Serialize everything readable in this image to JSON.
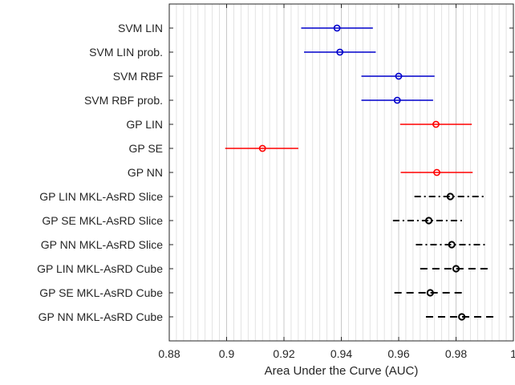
{
  "chart_data": {
    "type": "interval",
    "title": "",
    "xlabel": "Area Under the Curve (AUC)",
    "ylabel": "",
    "xlim": [
      0.88,
      1.0
    ],
    "xticks": [
      0.88,
      0.9,
      0.92,
      0.94,
      0.96,
      0.98,
      1.0
    ],
    "xtick_labels": [
      "0.88",
      "0.9",
      "0.92",
      "0.94",
      "0.96",
      "0.98",
      "1"
    ],
    "grid": "x minor and major, light gray",
    "categories": [
      "SVM LIN",
      "SVM LIN prob.",
      "SVM RBF",
      "SVM RBF prob.",
      "GP LIN",
      "GP SE",
      "GP NN",
      "GP LIN MKL-AsRD Slice",
      "GP SE MKL-AsRD Slice",
      "GP NN MKL-AsRD Slice",
      "GP LIN MKL-AsRD Cube",
      "GP SE MKL-AsRD Cube",
      "GP NN MKL-AsRD Cube"
    ],
    "points": [
      {
        "mean": 0.9385,
        "lo": 0.926,
        "hi": 0.951,
        "color": "#0000cc",
        "line": "solid"
      },
      {
        "mean": 0.9395,
        "lo": 0.927,
        "hi": 0.952,
        "color": "#0000cc",
        "line": "solid"
      },
      {
        "mean": 0.96,
        "lo": 0.947,
        "hi": 0.9725,
        "color": "#0000cc",
        "line": "solid"
      },
      {
        "mean": 0.9595,
        "lo": 0.947,
        "hi": 0.972,
        "color": "#0000cc",
        "line": "solid"
      },
      {
        "mean": 0.973,
        "lo": 0.9605,
        "hi": 0.9855,
        "color": "#ff0000",
        "line": "solid"
      },
      {
        "mean": 0.9125,
        "lo": 0.8995,
        "hi": 0.925,
        "color": "#ff0000",
        "line": "solid"
      },
      {
        "mean": 0.9733,
        "lo": 0.9607,
        "hi": 0.9858,
        "color": "#ff0000",
        "line": "solid"
      },
      {
        "mean": 0.978,
        "lo": 0.9655,
        "hi": 0.9905,
        "color": "#000000",
        "line": "dashdot"
      },
      {
        "mean": 0.9705,
        "lo": 0.958,
        "hi": 0.983,
        "color": "#000000",
        "line": "dashdot"
      },
      {
        "mean": 0.9785,
        "lo": 0.966,
        "hi": 0.991,
        "color": "#000000",
        "line": "dashdot"
      },
      {
        "mean": 0.98,
        "lo": 0.9675,
        "hi": 0.9925,
        "color": "#000000",
        "line": "dashed"
      },
      {
        "mean": 0.971,
        "lo": 0.9585,
        "hi": 0.9835,
        "color": "#000000",
        "line": "dashed"
      },
      {
        "mean": 0.982,
        "lo": 0.9695,
        "hi": 0.9945,
        "color": "#000000",
        "line": "dashed"
      }
    ]
  }
}
